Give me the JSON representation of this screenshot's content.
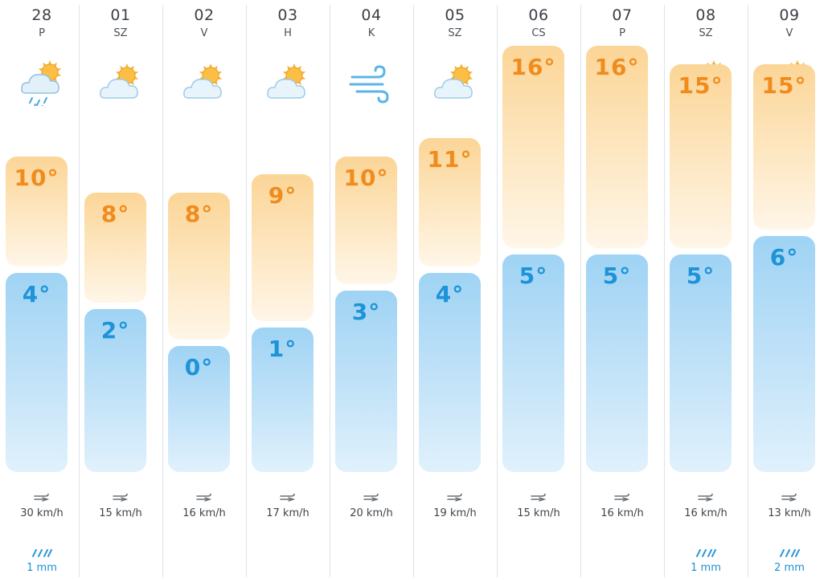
{
  "days": [
    {
      "date": "28",
      "dow": "P",
      "icon": "rain-cloud-sun-icon",
      "high": "10°",
      "low": "4°",
      "high_value": 10,
      "low_value": 4,
      "wind": "30 km/h",
      "precip": "1 mm"
    },
    {
      "date": "01",
      "dow": "SZ",
      "icon": "partly-cloudy-icon",
      "high": "8°",
      "low": "2°",
      "high_value": 8,
      "low_value": 2,
      "wind": "15 km/h",
      "precip": ""
    },
    {
      "date": "02",
      "dow": "V",
      "icon": "partly-cloudy-icon",
      "high": "8°",
      "low": "0°",
      "high_value": 8,
      "low_value": 0,
      "wind": "16 km/h",
      "precip": ""
    },
    {
      "date": "03",
      "dow": "H",
      "icon": "partly-cloudy-icon",
      "high": "9°",
      "low": "1°",
      "high_value": 9,
      "low_value": 1,
      "wind": "17 km/h",
      "precip": ""
    },
    {
      "date": "04",
      "dow": "K",
      "icon": "windy-icon",
      "high": "10°",
      "low": "3°",
      "high_value": 10,
      "low_value": 3,
      "wind": "20 km/h",
      "precip": ""
    },
    {
      "date": "05",
      "dow": "SZ",
      "icon": "partly-cloudy-icon",
      "high": "11°",
      "low": "4°",
      "high_value": 11,
      "low_value": 4,
      "wind": "19 km/h",
      "precip": ""
    },
    {
      "date": "06",
      "dow": "CS",
      "icon": "sunny-icon",
      "high": "16°",
      "low": "5°",
      "high_value": 16,
      "low_value": 5,
      "wind": "15 km/h",
      "precip": ""
    },
    {
      "date": "07",
      "dow": "P",
      "icon": "sunny-icon",
      "high": "16°",
      "low": "5°",
      "high_value": 16,
      "low_value": 5,
      "wind": "16 km/h",
      "precip": ""
    },
    {
      "date": "08",
      "dow": "SZ",
      "icon": "rain-cloud-sun-icon",
      "high": "15°",
      "low": "5°",
      "high_value": 15,
      "low_value": 5,
      "wind": "16 km/h",
      "precip": "1 mm"
    },
    {
      "date": "09",
      "dow": "V",
      "icon": "rain-cloud-sun-icon",
      "high": "15°",
      "low": "6°",
      "high_value": 15,
      "low_value": 6,
      "wind": "13 km/h",
      "precip": "2 mm"
    }
  ],
  "colors": {
    "high_text": "#f08c1e",
    "low_text": "#1d93d8",
    "precip_text": "#1a8fd2",
    "divider": "#dfe3e8"
  }
}
